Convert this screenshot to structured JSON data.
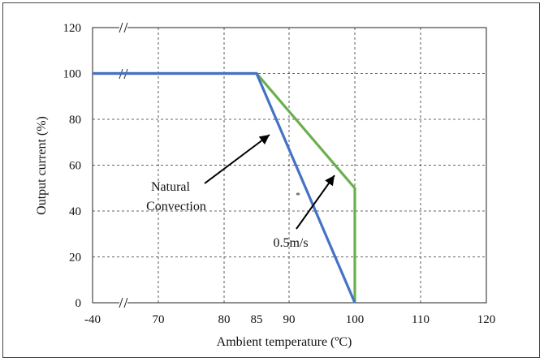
{
  "chart_data": {
    "type": "line",
    "xlabel": "Ambient temperature (ºC)",
    "ylabel": "Output current (%)",
    "x_ticks": [
      "-40",
      "70",
      "80",
      "85",
      "90",
      "100",
      "110",
      "120"
    ],
    "y_ticks": [
      "0",
      "20",
      "40",
      "60",
      "80",
      "100",
      "120"
    ],
    "xlim": [
      -40,
      120
    ],
    "ylim": [
      0,
      120
    ],
    "axis_break": "x between -40 and 70",
    "grid": true,
    "series": [
      {
        "color": "#4472c4",
        "x": [
          -40,
          85,
          100
        ],
        "y": [
          100,
          100,
          0
        ]
      },
      {
        "color": "#6ab04c",
        "x": [
          -40,
          85,
          100,
          100
        ],
        "y": [
          100,
          100,
          50,
          0
        ]
      }
    ],
    "annotations": [
      {
        "line1": "Natural",
        "line2": "Convection"
      },
      {
        "text": "0.5m/s"
      }
    ],
    "marker_text": "*"
  }
}
